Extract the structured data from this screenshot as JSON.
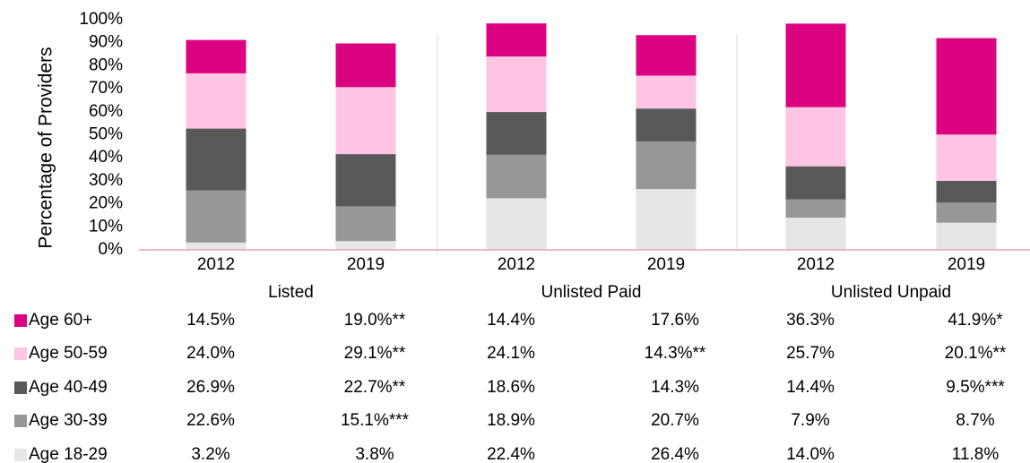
{
  "chart_data": {
    "type": "stacked_bar",
    "y_axis_label": "Percentage of Providers",
    "categories": [
      "2012",
      "2019",
      "2012",
      "2019",
      "2012",
      "2019"
    ],
    "groups": [
      "Listed",
      "Unlisted Paid",
      "Unlisted Unpaid"
    ],
    "ylim": [
      0,
      100
    ],
    "yticks": [
      {
        "value": 0,
        "label": "0%"
      },
      {
        "value": 10,
        "label": "10%"
      },
      {
        "value": 20,
        "label": "20%"
      },
      {
        "value": 30,
        "label": "30%"
      },
      {
        "value": 40,
        "label": "40%"
      },
      {
        "value": 50,
        "label": "50%"
      },
      {
        "value": 60,
        "label": "60%"
      },
      {
        "value": 70,
        "label": "70%"
      },
      {
        "value": 80,
        "label": "80%"
      },
      {
        "value": 90,
        "label": "90%"
      },
      {
        "value": 100,
        "label": "100%"
      }
    ],
    "series": [
      {
        "name": "Age 60+",
        "color": "#dc0380",
        "values": [
          14.5,
          19.0,
          14.4,
          17.6,
          36.3,
          41.9
        ],
        "value_labels": [
          "14.5%",
          "19.0%**",
          "14.4%",
          "17.6%",
          "36.3%",
          "41.9%*"
        ]
      },
      {
        "name": "Age 50-59",
        "color": "#fdc4e4",
        "values": [
          24.0,
          29.1,
          24.1,
          14.3,
          25.7,
          20.1
        ],
        "value_labels": [
          "24.0%",
          "29.1%**",
          "24.1%",
          "14.3%**",
          "25.7%",
          "20.1%**"
        ]
      },
      {
        "name": "Age 40-49",
        "color": "#595959",
        "values": [
          26.9,
          22.7,
          18.6,
          14.3,
          14.4,
          9.5
        ],
        "value_labels": [
          "26.9%",
          "22.7%**",
          "18.6%",
          "14.3%",
          "14.4%",
          "9.5%***"
        ]
      },
      {
        "name": "Age 30-39",
        "color": "#979797",
        "values": [
          22.6,
          15.1,
          18.9,
          20.7,
          7.9,
          8.7
        ],
        "value_labels": [
          "22.6%",
          "15.1%***",
          "18.9%",
          "20.7%",
          "7.9%",
          "8.7%"
        ]
      },
      {
        "name": "Age 18-29",
        "color": "#e6e6e6",
        "values": [
          3.2,
          3.8,
          22.4,
          26.4,
          14.0,
          11.8
        ],
        "value_labels": [
          "3.2%",
          "3.8%",
          "22.4%",
          "26.4%",
          "14.0%",
          "11.8%"
        ]
      }
    ]
  }
}
